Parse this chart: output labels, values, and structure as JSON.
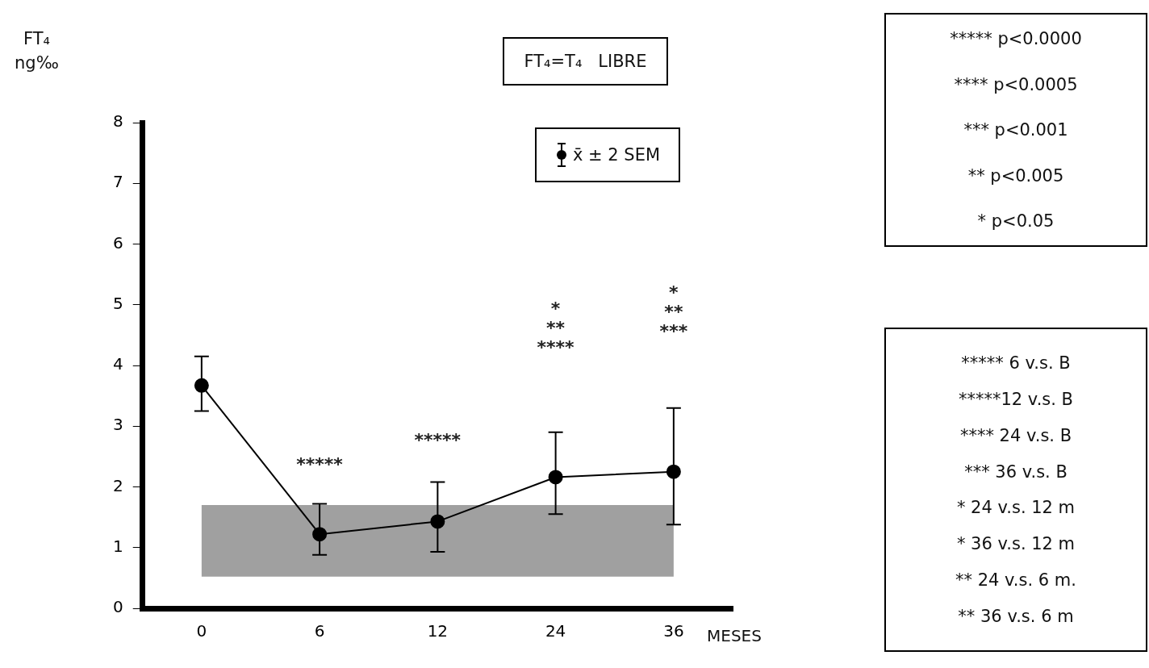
{
  "chart_data": {
    "type": "line",
    "ylabel": "FT₄\nng‰",
    "xlabel": "MESES",
    "categories": [
      "0",
      "6",
      "12",
      "24",
      "36"
    ],
    "series": [
      {
        "name": "x̄ ± 2 SEM",
        "color": "#000000",
        "values": [
          3.67,
          1.22,
          1.43,
          2.16,
          2.25
        ],
        "errors": [
          [
            3.25,
            4.15
          ],
          [
            0.88,
            1.72
          ],
          [
            0.93,
            2.08
          ],
          [
            1.55,
            2.9
          ],
          [
            1.38,
            3.3
          ]
        ]
      }
    ],
    "ylim": [
      0,
      8
    ],
    "yticks": [
      0,
      1,
      2,
      3,
      4,
      5,
      6,
      7,
      8
    ],
    "grid": false,
    "legend": "top",
    "marker": "circle",
    "line_style": "solid",
    "bands": [
      {
        "axis": "y",
        "from": 0.52,
        "to": 1.7,
        "color": "#a0a0a0"
      }
    ],
    "annotations": [
      "FT₄=T₄   LIBRE",
      "***** p<0.0000",
      "**** p<0.0005",
      "*** p<0.001",
      "** p<0.005",
      "* p<0.05",
      "***** 6 v.s. B",
      "*****12 v.s. B",
      "**** 24 v.s. B",
      "*** 36 v.s. B",
      "* 24 v.s. 12 m",
      "* 36 v.s. 12 m",
      "** 24 v.s. 6 m.",
      "** 36 v.s. 6 m",
      "*****",
      "*****",
      "*\n**\n****",
      "*\n**\n***"
    ]
  }
}
